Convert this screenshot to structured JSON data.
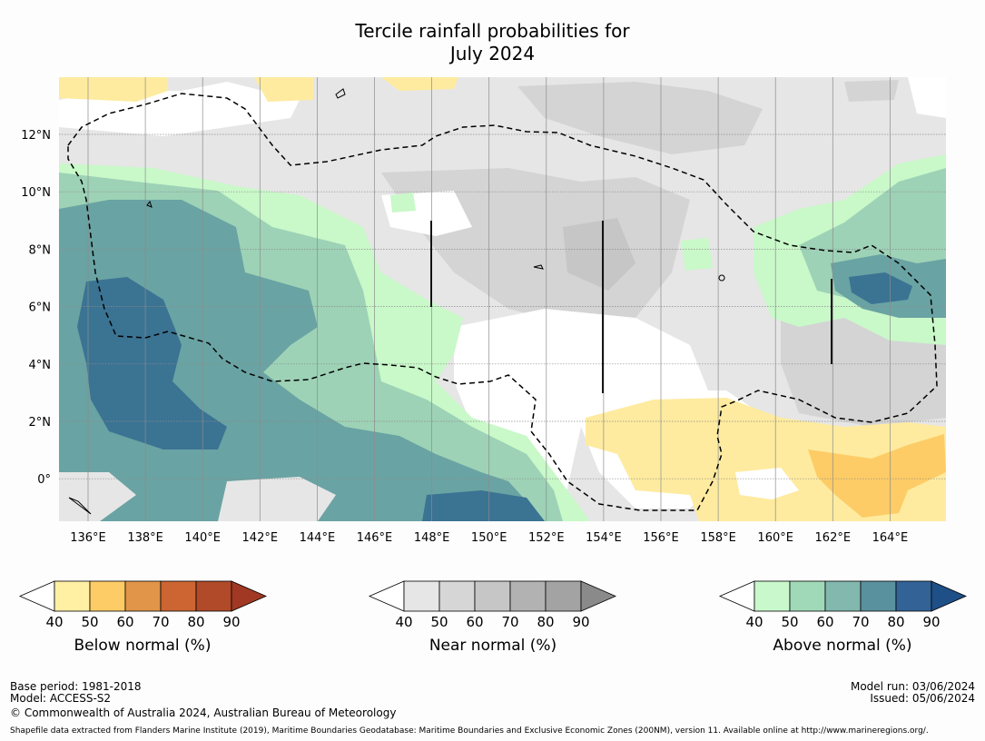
{
  "title": {
    "line1": "Tercile rainfall probabilities for",
    "line2": "July 2024"
  },
  "map": {
    "lon_labels": [
      "136°E",
      "138°E",
      "140°E",
      "142°E",
      "144°E",
      "146°E",
      "148°E",
      "150°E",
      "152°E",
      "154°E",
      "156°E",
      "158°E",
      "160°E",
      "162°E",
      "164°E"
    ],
    "lat_labels": [
      "12°N",
      "10°N",
      "8°N",
      "6°N",
      "4°N",
      "2°N",
      "0°"
    ],
    "colors": {
      "near_light": "#e6e6e6",
      "near_mid": "#d4d4d4",
      "near_dark": "#c6c6c6",
      "below_1": "#feeb9f",
      "below_2": "#fdcc66",
      "above_1": "#c9f8c9",
      "above_2": "#9dd2b6",
      "above_3": "#6aa3a3",
      "above_4": "#3b7393",
      "white": "#ffffff"
    }
  },
  "colorbars": [
    {
      "title": "Below normal (%)",
      "ticks": [
        "40",
        "50",
        "60",
        "70",
        "80",
        "90"
      ],
      "colors": [
        "#fff0a4",
        "#fdcc66",
        "#e19548",
        "#cc6532",
        "#b14a28",
        "#a03823"
      ]
    },
    {
      "title": "Near normal (%)",
      "ticks": [
        "40",
        "50",
        "60",
        "70",
        "80",
        "90"
      ],
      "colors": [
        "#e6e6e6",
        "#d6d6d6",
        "#c6c6c6",
        "#b2b2b2",
        "#a3a3a3",
        "#8a8a8a"
      ]
    },
    {
      "title": "Above normal (%)",
      "ticks": [
        "40",
        "50",
        "60",
        "70",
        "80",
        "90"
      ],
      "colors": [
        "#c8f8cc",
        "#a0d9b8",
        "#82b8ae",
        "#5a919e",
        "#336396",
        "#1f4f87"
      ]
    }
  ],
  "footer": {
    "base_period": "Base period: 1981-2018",
    "model": "Model: ACCESS-S2",
    "copyright": "© Commonwealth of Australia 2024, Australian Bureau of Meteorology",
    "model_run": "Model run: 03/06/2024",
    "issued": "Issued: 05/06/2024",
    "shapefile": "Shapefile data extracted from Flanders Marine Institute (2019), Maritime Boundaries Geodatabase: Maritime Boundaries and Exclusive Economic Zones (200NM), version 11. Available online at http://www.marineregions.org/."
  }
}
